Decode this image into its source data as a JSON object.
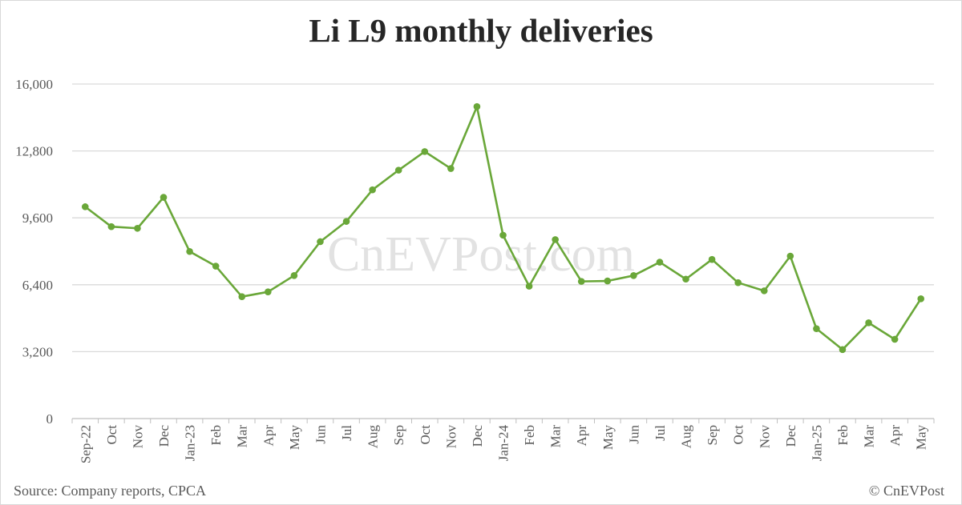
{
  "chart_data": {
    "type": "line",
    "title": "Li L9 monthly deliveries",
    "xlabel": "",
    "ylabel": "",
    "ylim": [
      0,
      16000
    ],
    "yticks": [
      "0",
      "3,200",
      "6,400",
      "9,600",
      "12,800",
      "16,000"
    ],
    "ytick_values": [
      0,
      3200,
      6400,
      9600,
      12800,
      16000
    ],
    "grid": true,
    "legend": "none",
    "categories": [
      "Sep-22",
      "Oct",
      "Nov",
      "Dec",
      "Jan-23",
      "Feb",
      "Mar",
      "Apr",
      "May",
      "Jun",
      "Jul",
      "Aug",
      "Sep",
      "Oct",
      "Nov",
      "Dec",
      "Jan-24",
      "Feb",
      "Mar",
      "Apr",
      "May",
      "Jun",
      "Jul",
      "Aug",
      "Sep",
      "Oct",
      "Nov",
      "Dec",
      "Jan-25",
      "Feb",
      "Mar",
      "Apr",
      "May"
    ],
    "series": [
      {
        "values": [
          10130,
          9180,
          9100,
          10580,
          7990,
          7290,
          5830,
          6060,
          6840,
          8460,
          9430,
          10940,
          11880,
          12770,
          11960,
          14920,
          8770,
          6330,
          8560,
          6560,
          6580,
          6840,
          7480,
          6670,
          7610,
          6500,
          6110,
          7770,
          4300,
          3300,
          4580,
          3790,
          5730
        ],
        "color": "#6aa739"
      }
    ],
    "source": "Source: Company reports, CPCA",
    "copyright": "© CnEVPost",
    "watermark": "CnEVPost.com"
  }
}
